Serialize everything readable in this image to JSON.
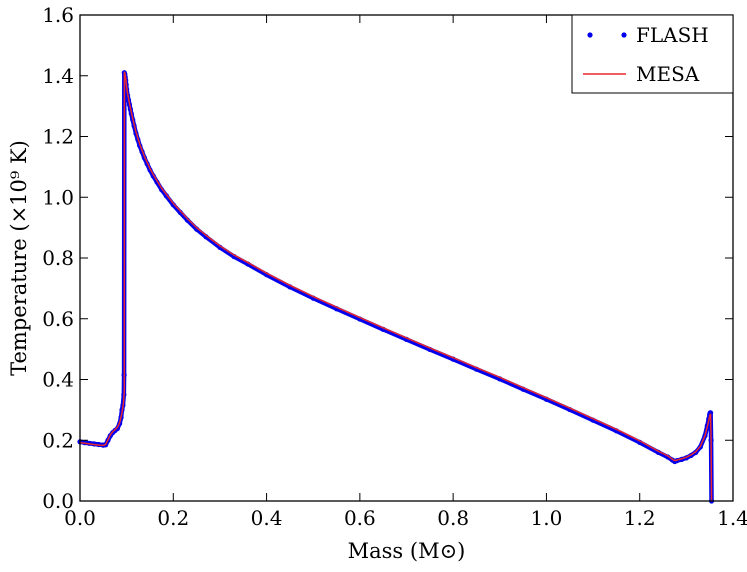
{
  "chart_data": {
    "type": "line",
    "title": "",
    "xlabel": "Mass (M⊙)",
    "ylabel": "Temperature (×10⁹ K)",
    "xlim": [
      0.0,
      1.4
    ],
    "ylim": [
      0.0,
      1.6
    ],
    "xticks": [
      "0.0",
      "0.2",
      "0.4",
      "0.6",
      "0.8",
      "1.0",
      "1.2",
      "1.4"
    ],
    "yticks": [
      "0.0",
      "0.2",
      "0.4",
      "0.6",
      "0.8",
      "1.0",
      "1.2",
      "1.4",
      "1.6"
    ],
    "grid": false,
    "legend_position": "top-right",
    "series": [
      {
        "name": "FLASH",
        "style": "markers",
        "color": "#0000ee",
        "x": [
          0.0,
          0.01,
          0.02,
          0.03,
          0.04,
          0.05,
          0.055,
          0.06,
          0.065,
          0.07,
          0.075,
          0.08,
          0.085,
          0.088,
          0.09,
          0.092,
          0.094,
          0.0945,
          0.095,
          0.096,
          0.097,
          0.098,
          0.099,
          0.1,
          0.102,
          0.104,
          0.106,
          0.108,
          0.11,
          0.113,
          0.116,
          0.12,
          0.124,
          0.128,
          0.133,
          0.138,
          0.144,
          0.15,
          0.157,
          0.165,
          0.175,
          0.185,
          0.2,
          0.215,
          0.23,
          0.25,
          0.27,
          0.3,
          0.33,
          0.36,
          0.4,
          0.45,
          0.5,
          0.55,
          0.6,
          0.65,
          0.7,
          0.75,
          0.8,
          0.85,
          0.9,
          0.95,
          1.0,
          1.05,
          1.1,
          1.15,
          1.2,
          1.24,
          1.26,
          1.27,
          1.275,
          1.28,
          1.29,
          1.3,
          1.31,
          1.32,
          1.33,
          1.34,
          1.345,
          1.348,
          1.35,
          1.351,
          1.352,
          1.353,
          1.354
        ],
        "y": [
          0.195,
          0.192,
          0.19,
          0.188,
          0.186,
          0.184,
          0.185,
          0.2,
          0.215,
          0.225,
          0.232,
          0.238,
          0.255,
          0.275,
          0.3,
          0.315,
          0.35,
          0.415,
          1.41,
          1.405,
          1.395,
          1.385,
          1.37,
          1.355,
          1.335,
          1.32,
          1.305,
          1.29,
          1.275,
          1.255,
          1.235,
          1.21,
          1.19,
          1.17,
          1.15,
          1.13,
          1.11,
          1.09,
          1.07,
          1.05,
          1.025,
          1.005,
          0.975,
          0.95,
          0.925,
          0.895,
          0.87,
          0.835,
          0.805,
          0.78,
          0.745,
          0.705,
          0.668,
          0.633,
          0.599,
          0.565,
          0.532,
          0.499,
          0.467,
          0.434,
          0.402,
          0.368,
          0.335,
          0.301,
          0.266,
          0.231,
          0.193,
          0.16,
          0.145,
          0.135,
          0.13,
          0.133,
          0.137,
          0.142,
          0.15,
          0.16,
          0.178,
          0.215,
          0.248,
          0.27,
          0.285,
          0.29,
          0.29,
          0.2,
          0.0
        ]
      },
      {
        "name": "MESA",
        "style": "line",
        "color": "#e8282c",
        "x": [
          0.0,
          0.01,
          0.02,
          0.03,
          0.04,
          0.05,
          0.055,
          0.06,
          0.065,
          0.07,
          0.075,
          0.08,
          0.085,
          0.09,
          0.093,
          0.095,
          0.0952,
          0.096,
          0.097,
          0.098,
          0.099,
          0.1,
          0.102,
          0.104,
          0.106,
          0.108,
          0.11,
          0.113,
          0.116,
          0.12,
          0.124,
          0.128,
          0.133,
          0.138,
          0.144,
          0.15,
          0.157,
          0.165,
          0.175,
          0.185,
          0.2,
          0.215,
          0.23,
          0.25,
          0.27,
          0.3,
          0.33,
          0.36,
          0.4,
          0.45,
          0.5,
          0.55,
          0.6,
          0.65,
          0.7,
          0.75,
          0.8,
          0.85,
          0.9,
          0.95,
          1.0,
          1.05,
          1.1,
          1.15,
          1.2,
          1.24,
          1.26,
          1.27,
          1.275,
          1.28,
          1.29,
          1.3,
          1.31,
          1.32,
          1.33,
          1.34,
          1.345,
          1.348,
          1.35,
          1.351,
          1.352,
          1.353,
          1.354
        ],
        "y": [
          0.192,
          0.19,
          0.188,
          0.186,
          0.184,
          0.183,
          0.186,
          0.202,
          0.218,
          0.228,
          0.235,
          0.242,
          0.258,
          0.29,
          0.32,
          0.36,
          1.412,
          1.41,
          1.402,
          1.392,
          1.378,
          1.362,
          1.342,
          1.326,
          1.31,
          1.295,
          1.28,
          1.26,
          1.24,
          1.215,
          1.195,
          1.175,
          1.155,
          1.135,
          1.115,
          1.095,
          1.075,
          1.055,
          1.03,
          1.01,
          0.98,
          0.955,
          0.93,
          0.9,
          0.875,
          0.84,
          0.81,
          0.785,
          0.75,
          0.71,
          0.673,
          0.638,
          0.604,
          0.57,
          0.537,
          0.504,
          0.472,
          0.439,
          0.407,
          0.373,
          0.34,
          0.306,
          0.271,
          0.236,
          0.198,
          0.164,
          0.149,
          0.138,
          0.133,
          0.135,
          0.139,
          0.144,
          0.152,
          0.162,
          0.18,
          0.215,
          0.245,
          0.265,
          0.28,
          0.285,
          0.285,
          0.2,
          0.0
        ]
      }
    ]
  }
}
